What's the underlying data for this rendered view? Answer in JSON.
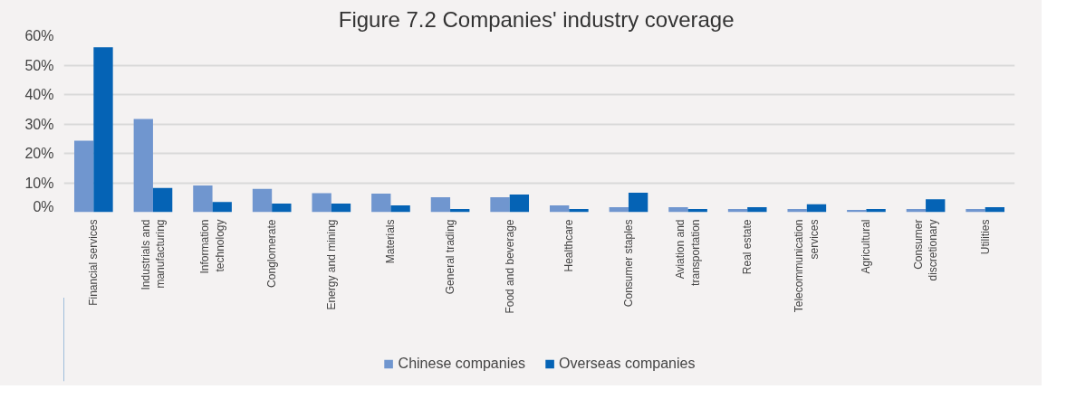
{
  "chart_data": {
    "type": "bar",
    "title": "Figure 7.2  Companies' industry coverage",
    "categories": [
      "Financial services",
      "Industrials and manufacturing",
      "Information technology",
      "Conglomerate",
      "Energy and mining",
      "Materials",
      "General trading",
      "Food and beverage",
      "Healthcare",
      "Consumer staples",
      "Aviation and transportation",
      "Real estate",
      "Telecommunication services",
      "Agricultural",
      "Consumer discretionary",
      "Utilities"
    ],
    "series": [
      {
        "name": "Chinese companies",
        "color": "#7096cf",
        "values": [
          24.3,
          31.7,
          9.1,
          7.9,
          6.5,
          6.3,
          5.1,
          5.1,
          2.3,
          1.7,
          1.7,
          1.1,
          1.1,
          0.8,
          1.1,
          1.1
        ]
      },
      {
        "name": "Overseas companies",
        "color": "#0563b5",
        "values": [
          56.1,
          8.2,
          3.5,
          2.9,
          2.9,
          2.3,
          1.1,
          6.0,
          1.1,
          6.6,
          1.1,
          1.7,
          2.7,
          1.1,
          4.4,
          1.7
        ]
      }
    ],
    "ylim": [
      0,
      60
    ],
    "yticks": [
      {
        "value": 0,
        "label": "0%"
      },
      {
        "value": 10,
        "label": "10%"
      },
      {
        "value": 20,
        "label": "20%"
      },
      {
        "value": 30,
        "label": "30%"
      },
      {
        "value": 40,
        "label": "40%"
      },
      {
        "value": 50,
        "label": "50%"
      },
      {
        "value": 60,
        "label": "60%"
      }
    ],
    "grid": "y",
    "legend": "bottom"
  }
}
